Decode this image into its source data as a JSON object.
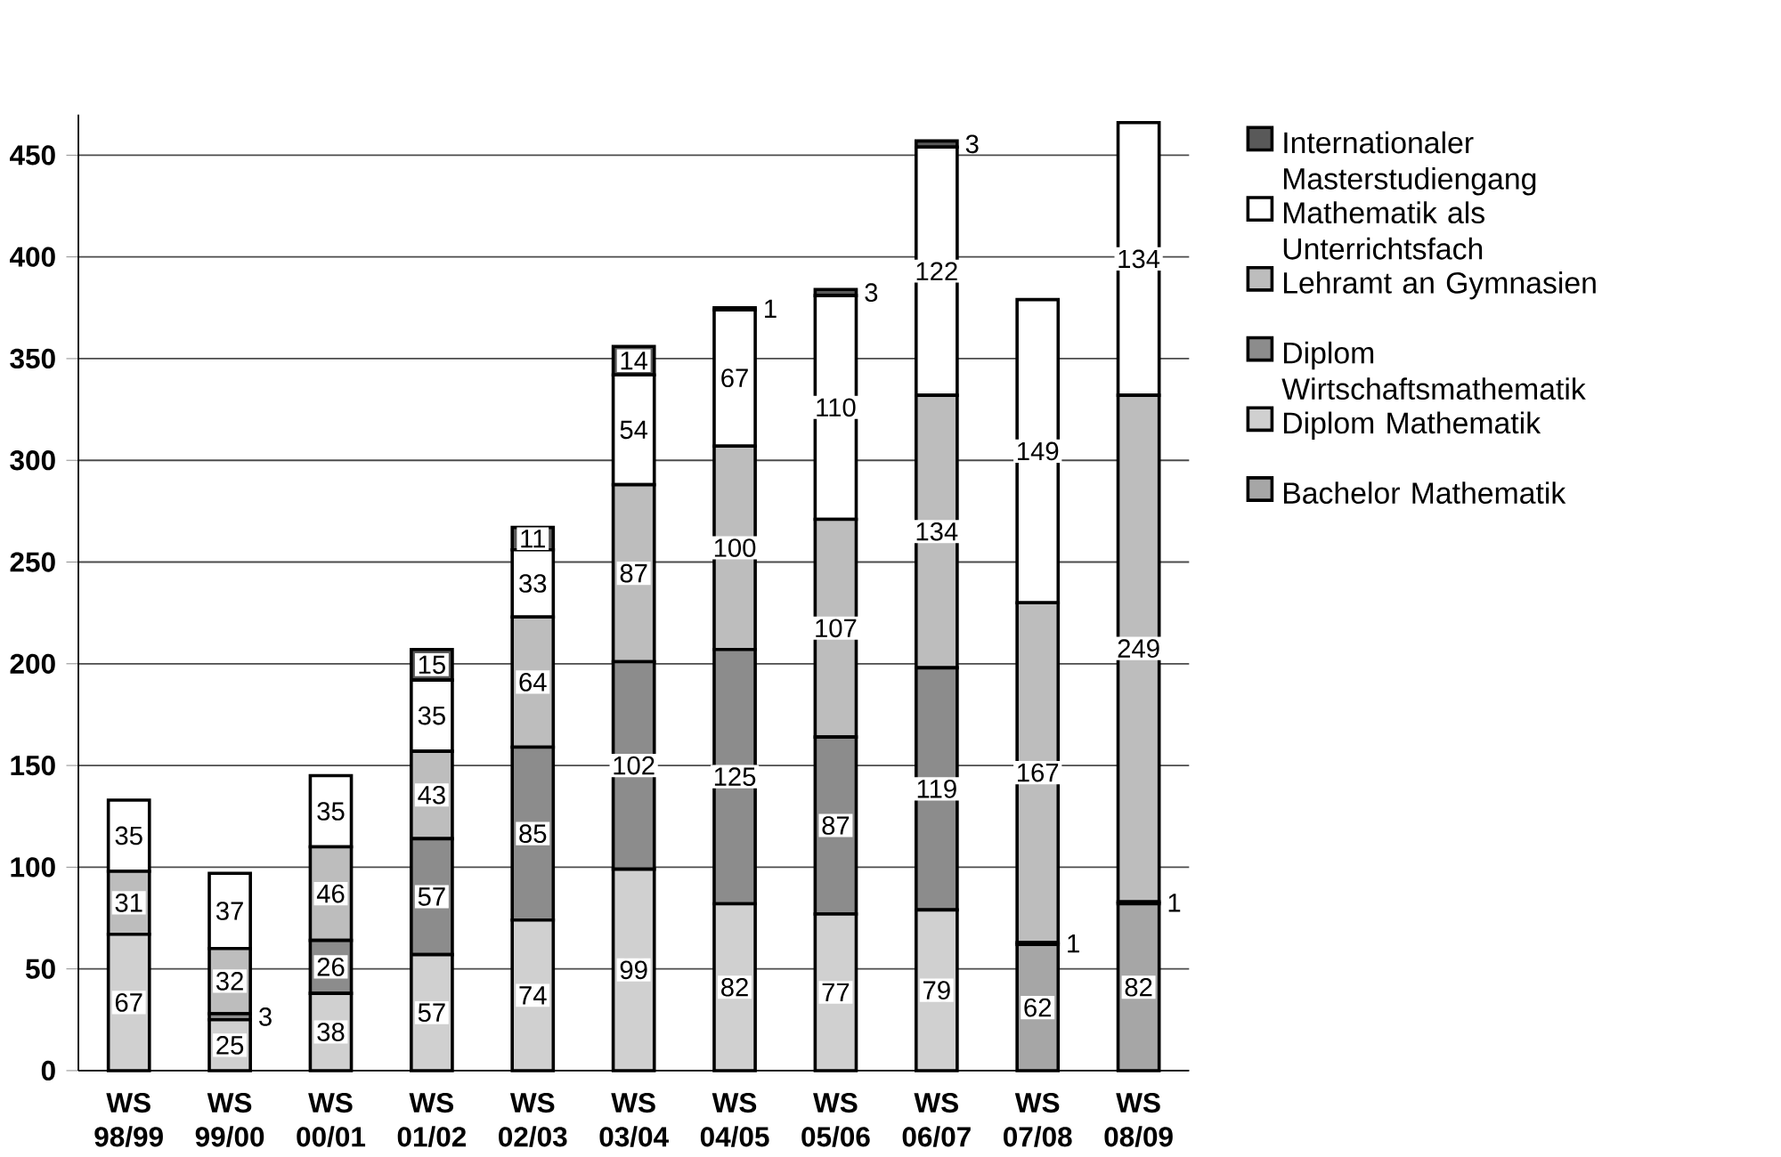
{
  "chart_data": {
    "type": "bar",
    "stacked": true,
    "categories": [
      "WS 98/99",
      "WS 99/00",
      "WS 00/01",
      "WS 01/02",
      "WS 02/03",
      "WS 03/04",
      "WS 04/05",
      "WS 05/06",
      "WS 06/07",
      "WS 07/08",
      "WS 08/09"
    ],
    "series": [
      {
        "name": "Bachelor Mathematik",
        "color": "#a6a6a6",
        "values": [
          null,
          null,
          null,
          null,
          null,
          null,
          null,
          null,
          null,
          62,
          82
        ]
      },
      {
        "name": "Diplom Mathematik",
        "color": "#d0d0d0",
        "values": [
          67,
          25,
          38,
          57,
          74,
          99,
          82,
          77,
          79,
          1,
          1
        ]
      },
      {
        "name": "Diplom Wirtschaftsmathematik",
        "color": "#8c8c8c",
        "values": [
          null,
          3,
          26,
          57,
          85,
          102,
          125,
          87,
          119,
          null,
          null
        ]
      },
      {
        "name": "Lehramt an Gymnasien",
        "color": "#bdbdbd",
        "values": [
          31,
          32,
          46,
          43,
          64,
          87,
          100,
          107,
          134,
          167,
          249
        ]
      },
      {
        "name": "Mathematik als Unterrichtsfach",
        "color": "#ffffff",
        "values": [
          35,
          37,
          35,
          35,
          33,
          54,
          67,
          110,
          122,
          149,
          134
        ]
      },
      {
        "name": "Internationaler Masterstudiengang",
        "color": "#595959",
        "values": [
          null,
          null,
          null,
          15,
          11,
          14,
          1,
          3,
          3,
          null,
          null
        ]
      }
    ],
    "ylim": [
      0,
      470
    ],
    "yticks": [
      0,
      50,
      100,
      150,
      200,
      250,
      300,
      350,
      400,
      450
    ],
    "grid": "y",
    "legend": "right",
    "data_labels": true
  }
}
